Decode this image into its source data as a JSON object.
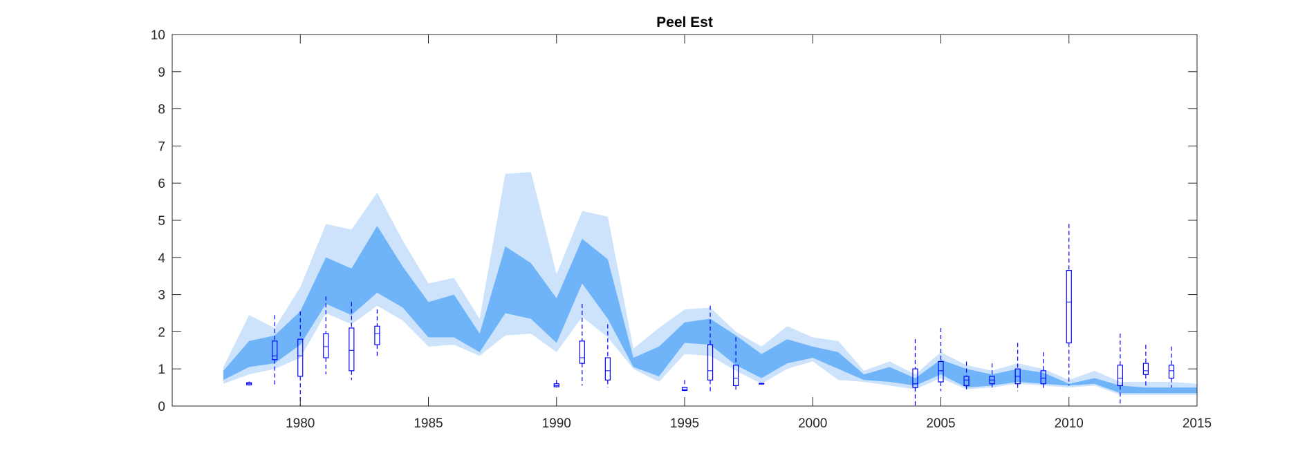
{
  "chart_data": {
    "type": "area",
    "title": "Peel Est",
    "xlabel": "",
    "ylabel": "",
    "xlim": [
      1975,
      2015
    ],
    "ylim": [
      0,
      10
    ],
    "xticks": [
      1980,
      1985,
      1990,
      1995,
      2000,
      2005,
      2010,
      2015
    ],
    "yticks": [
      0,
      1,
      2,
      3,
      4,
      5,
      6,
      7,
      8,
      9,
      10
    ],
    "grid": false,
    "colors": {
      "outer_band": "#cce3fb",
      "inner_band": "#6fb3f8",
      "boxplot": "#0000ff",
      "axis": "#262626"
    },
    "outer_band": {
      "x": [
        1977,
        1978,
        1979,
        1980,
        1981,
        1982,
        1983,
        1984,
        1985,
        1986,
        1987,
        1988,
        1989,
        1990,
        1991,
        1992,
        1993,
        1994,
        1995,
        1996,
        1997,
        1998,
        1999,
        2000,
        2001,
        2002,
        2003,
        2004,
        2005,
        2006,
        2007,
        2008,
        2009,
        2010,
        2011,
        2012,
        2013,
        2014,
        2015
      ],
      "lower": [
        0.6,
        0.85,
        1.0,
        1.3,
        2.5,
        2.2,
        2.7,
        2.3,
        1.6,
        1.65,
        1.35,
        1.9,
        1.95,
        1.45,
        2.4,
        1.85,
        1.0,
        0.65,
        1.4,
        1.35,
        0.95,
        0.6,
        1.0,
        1.2,
        0.7,
        0.65,
        0.55,
        0.45,
        0.75,
        0.45,
        0.5,
        0.6,
        0.55,
        0.5,
        0.55,
        0.3,
        0.3,
        0.3,
        0.3
      ],
      "upper": [
        1.05,
        2.45,
        2.1,
        3.2,
        4.9,
        4.75,
        5.75,
        4.45,
        3.3,
        3.45,
        2.35,
        6.25,
        6.3,
        3.55,
        5.25,
        5.1,
        1.55,
        2.1,
        2.6,
        2.65,
        2.0,
        1.6,
        2.15,
        1.85,
        1.75,
        0.95,
        1.2,
        0.85,
        1.45,
        1.1,
        0.95,
        1.15,
        1.0,
        0.7,
        0.95,
        0.65,
        0.65,
        0.65,
        0.6
      ]
    },
    "inner_band": {
      "x": [
        1977,
        1978,
        1979,
        1980,
        1981,
        1982,
        1983,
        1984,
        1985,
        1986,
        1987,
        1988,
        1989,
        1990,
        1991,
        1992,
        1993,
        1994,
        1995,
        1996,
        1997,
        1998,
        1999,
        2000,
        2001,
        2002,
        2003,
        2004,
        2005,
        2006,
        2007,
        2008,
        2009,
        2010,
        2011,
        2012,
        2013,
        2014,
        2015
      ],
      "lower": [
        0.7,
        1.05,
        1.15,
        1.65,
        2.75,
        2.45,
        3.05,
        2.65,
        1.85,
        1.85,
        1.45,
        2.5,
        2.35,
        1.7,
        3.3,
        2.35,
        1.05,
        0.8,
        1.7,
        1.65,
        1.1,
        0.75,
        1.15,
        1.3,
        1.0,
        0.7,
        0.65,
        0.55,
        0.85,
        0.5,
        0.55,
        0.65,
        0.6,
        0.55,
        0.6,
        0.35,
        0.35,
        0.35,
        0.35
      ],
      "upper": [
        0.95,
        1.75,
        1.9,
        2.55,
        4.0,
        3.7,
        4.85,
        3.75,
        2.8,
        3.0,
        1.95,
        4.3,
        3.85,
        2.9,
        4.5,
        3.95,
        1.3,
        1.6,
        2.25,
        2.35,
        1.9,
        1.4,
        1.8,
        1.6,
        1.45,
        0.85,
        1.05,
        0.75,
        1.25,
        1.0,
        0.85,
        1.0,
        0.9,
        0.6,
        0.75,
        0.55,
        0.5,
        0.5,
        0.5
      ]
    },
    "boxplots": [
      {
        "x": 1978,
        "whisker_low": 0.55,
        "q1": 0.57,
        "median": 0.6,
        "q3": 0.63,
        "whisker_high": 0.66
      },
      {
        "x": 1979,
        "whisker_low": 0.55,
        "q1": 1.25,
        "median": 1.35,
        "q3": 1.75,
        "whisker_high": 2.45
      },
      {
        "x": 1980,
        "whisker_low": 0.0,
        "q1": 0.8,
        "median": 1.35,
        "q3": 1.8,
        "whisker_high": 2.55
      },
      {
        "x": 1981,
        "whisker_low": 0.85,
        "q1": 1.3,
        "median": 1.6,
        "q3": 1.95,
        "whisker_high": 2.95
      },
      {
        "x": 1982,
        "whisker_low": 0.7,
        "q1": 0.95,
        "median": 1.5,
        "q3": 2.1,
        "whisker_high": 2.8
      },
      {
        "x": 1983,
        "whisker_low": 1.35,
        "q1": 1.65,
        "median": 1.95,
        "q3": 2.15,
        "whisker_high": 2.6
      },
      {
        "x": 1990,
        "whisker_low": 0.5,
        "q1": 0.52,
        "median": 0.55,
        "q3": 0.6,
        "whisker_high": 0.7
      },
      {
        "x": 1991,
        "whisker_low": 0.55,
        "q1": 1.15,
        "median": 1.3,
        "q3": 1.75,
        "whisker_high": 2.75
      },
      {
        "x": 1992,
        "whisker_low": 0.5,
        "q1": 0.7,
        "median": 0.95,
        "q3": 1.3,
        "whisker_high": 2.2
      },
      {
        "x": 1995,
        "whisker_low": 0.4,
        "q1": 0.42,
        "median": 0.45,
        "q3": 0.5,
        "whisker_high": 0.7
      },
      {
        "x": 1996,
        "whisker_low": 0.35,
        "q1": 0.7,
        "median": 0.95,
        "q3": 1.65,
        "whisker_high": 2.7
      },
      {
        "x": 1997,
        "whisker_low": 0.4,
        "q1": 0.55,
        "median": 0.75,
        "q3": 1.1,
        "whisker_high": 1.85
      },
      {
        "x": 1998,
        "whisker_low": 0.58,
        "q1": 0.6,
        "median": 0.6,
        "q3": 0.61,
        "whisker_high": 0.62
      },
      {
        "x": 2004,
        "whisker_low": 0.0,
        "q1": 0.5,
        "median": 0.6,
        "q3": 1.0,
        "whisker_high": 1.8
      },
      {
        "x": 2005,
        "whisker_low": 0.4,
        "q1": 0.65,
        "median": 0.95,
        "q3": 1.2,
        "whisker_high": 2.1
      },
      {
        "x": 2006,
        "whisker_low": 0.45,
        "q1": 0.55,
        "median": 0.7,
        "q3": 0.8,
        "whisker_high": 1.2
      },
      {
        "x": 2007,
        "whisker_low": 0.5,
        "q1": 0.6,
        "median": 0.7,
        "q3": 0.8,
        "whisker_high": 1.15
      },
      {
        "x": 2008,
        "whisker_low": 0.4,
        "q1": 0.6,
        "median": 0.8,
        "q3": 1.0,
        "whisker_high": 1.7
      },
      {
        "x": 2009,
        "whisker_low": 0.45,
        "q1": 0.6,
        "median": 0.75,
        "q3": 0.95,
        "whisker_high": 1.45
      },
      {
        "x": 2010,
        "whisker_low": 0.55,
        "q1": 1.7,
        "median": 2.8,
        "q3": 3.65,
        "whisker_high": 4.9
      },
      {
        "x": 2012,
        "whisker_low": 0.0,
        "q1": 0.55,
        "median": 0.75,
        "q3": 1.1,
        "whisker_high": 1.95
      },
      {
        "x": 2013,
        "whisker_low": 0.5,
        "q1": 0.85,
        "median": 0.95,
        "q3": 1.15,
        "whisker_high": 1.65
      },
      {
        "x": 2014,
        "whisker_low": 0.5,
        "q1": 0.75,
        "median": 0.95,
        "q3": 1.1,
        "whisker_high": 1.6
      }
    ]
  }
}
